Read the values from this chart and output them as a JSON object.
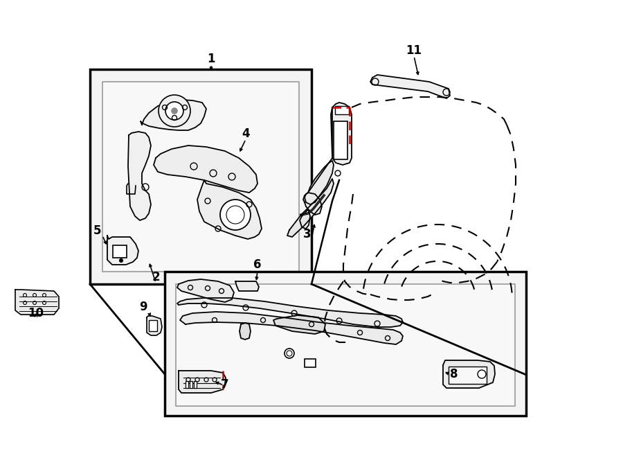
{
  "bg": "#ffffff",
  "lc": "#000000",
  "rc": "#cc0000",
  "lw": 1.4
}
